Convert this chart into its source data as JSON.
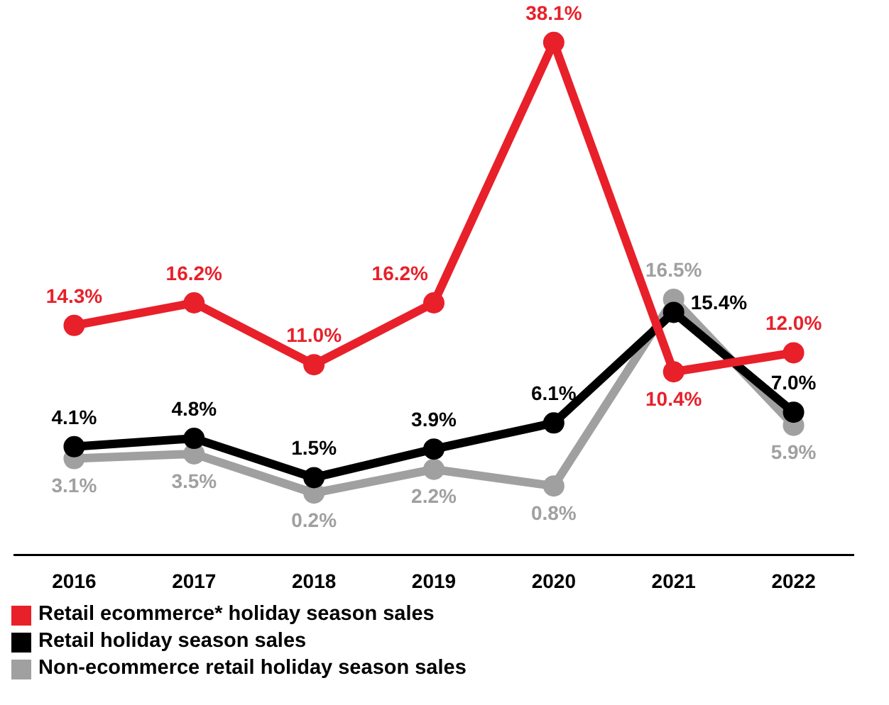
{
  "chart_data": {
    "type": "line",
    "categories": [
      "2016",
      "2017",
      "2018",
      "2019",
      "2020",
      "2021",
      "2022"
    ],
    "series": [
      {
        "name": "Retail ecommerce* holiday season sales",
        "color": "#e8202a",
        "values": [
          14.3,
          16.2,
          11.0,
          16.2,
          38.1,
          10.4,
          12.0
        ],
        "value_labels": [
          "14.3%",
          "16.2%",
          "11.0%",
          "16.2%",
          "38.1%",
          "10.4%",
          "12.0%"
        ]
      },
      {
        "name": "Retail holiday season sales",
        "color": "#000000",
        "values": [
          4.1,
          4.8,
          1.5,
          3.9,
          6.1,
          15.4,
          7.0
        ],
        "value_labels": [
          "4.1%",
          "4.8%",
          "1.5%",
          "3.9%",
          "6.1%",
          "15.4%",
          "7.0%"
        ]
      },
      {
        "name": "Non-ecommerce retail holiday season sales",
        "color": "#a0a0a0",
        "values": [
          3.1,
          3.5,
          0.2,
          2.2,
          0.8,
          16.5,
          5.9
        ],
        "value_labels": [
          "3.1%",
          "3.5%",
          "0.2%",
          "2.2%",
          "0.8%",
          "16.5%",
          "5.9%"
        ]
      }
    ],
    "marker": "circle",
    "line_style": "solid",
    "legend": "bottom left"
  }
}
